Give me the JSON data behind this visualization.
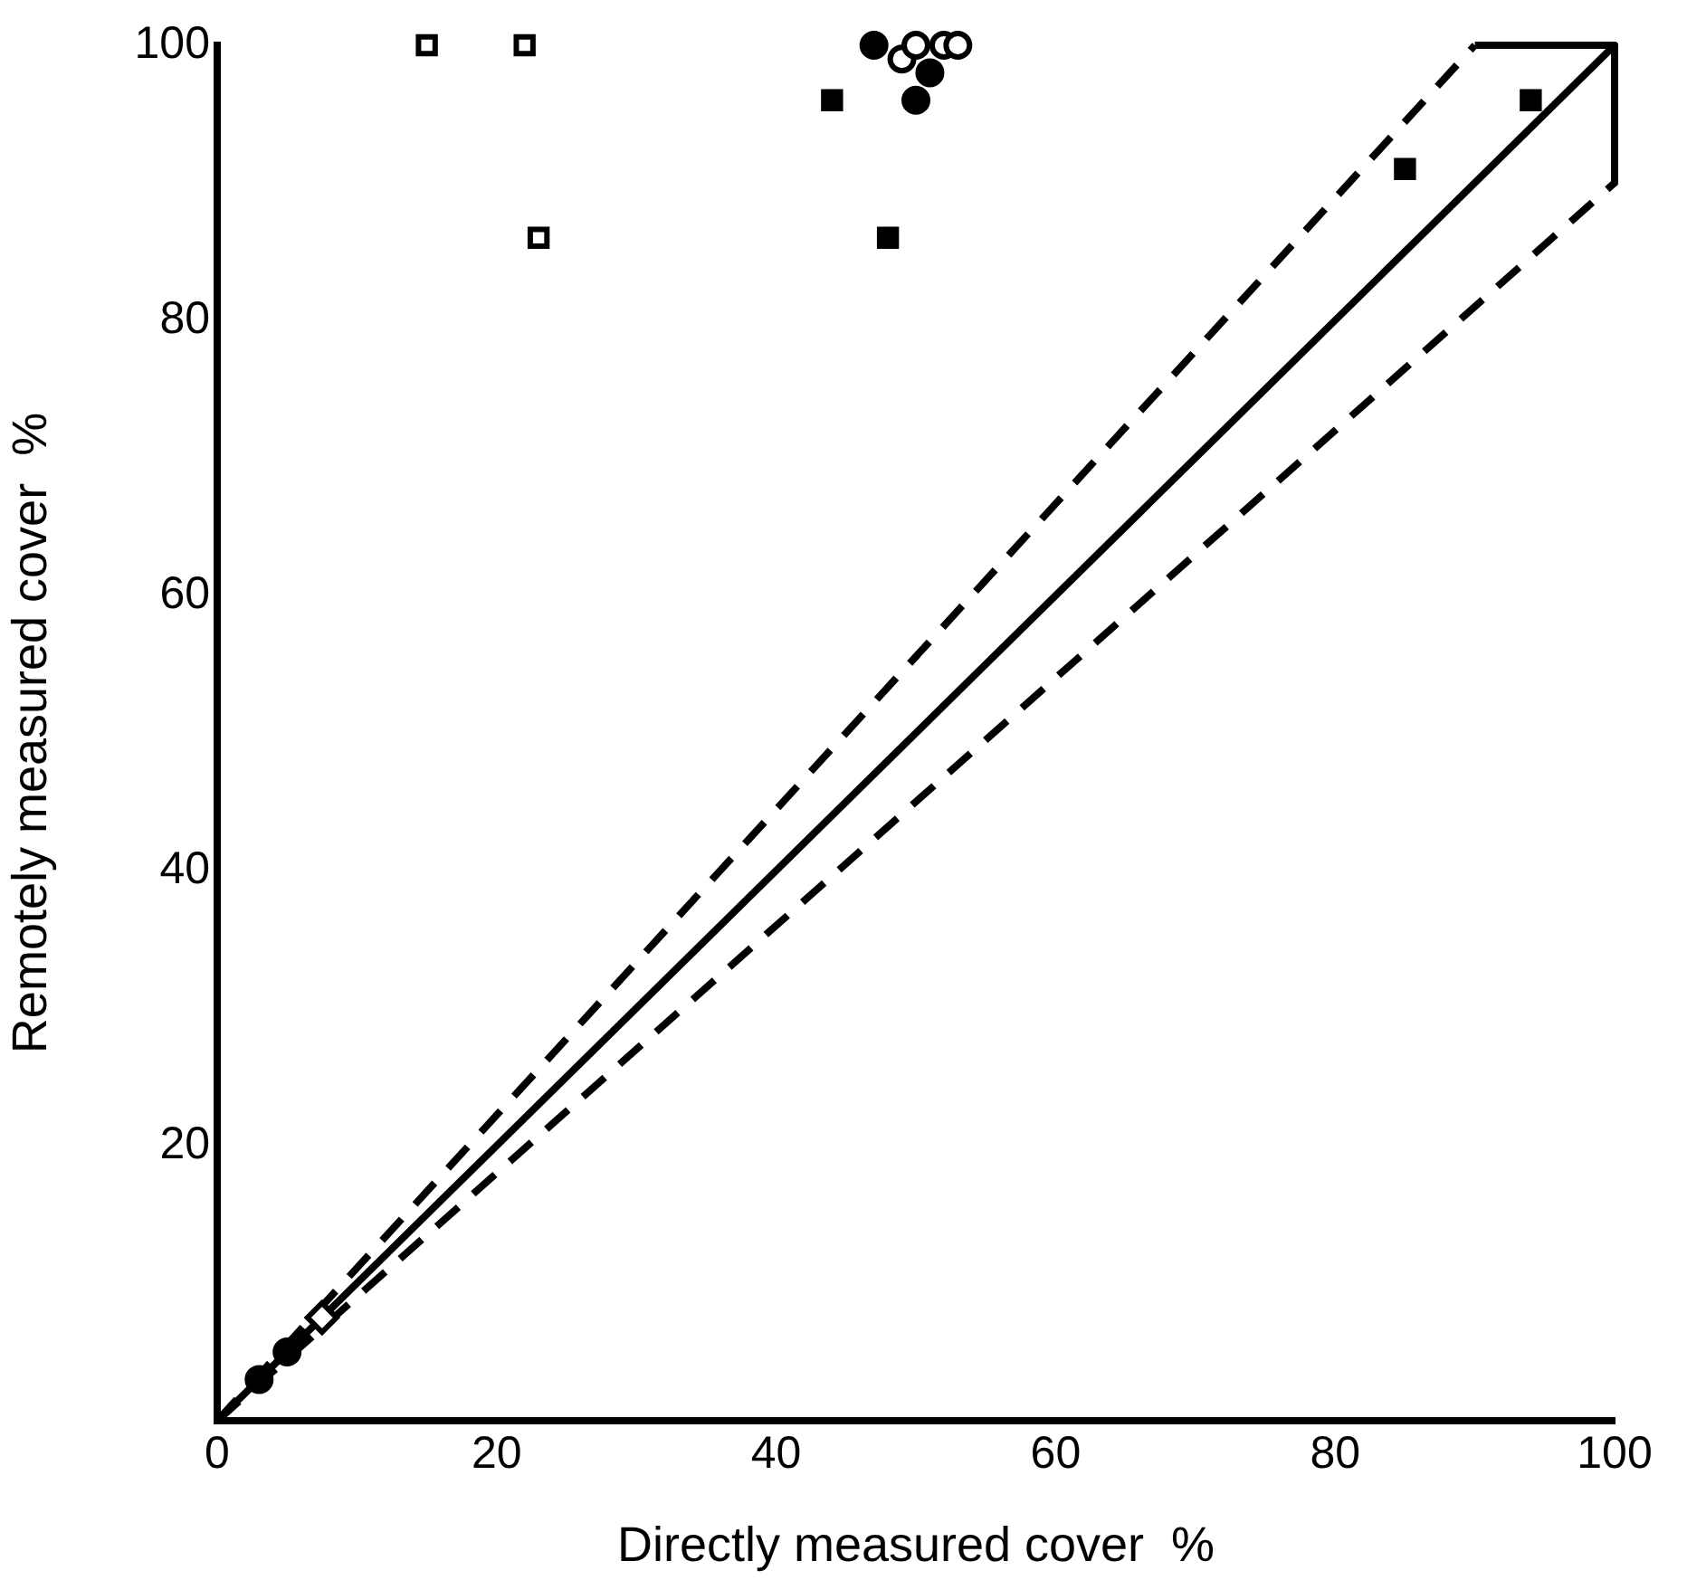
{
  "chart_data": {
    "type": "scatter",
    "xlabel": "Directly measured cover  %",
    "ylabel": "Remotely measured cover  %",
    "xlim": [
      0,
      100
    ],
    "ylim": [
      0,
      100
    ],
    "xticks": [
      0,
      20,
      40,
      60,
      80,
      100
    ],
    "yticks": [
      20,
      40,
      60,
      80,
      100
    ],
    "grid": false,
    "legend": false,
    "series": [
      {
        "type": "line",
        "color": "#000000",
        "x": [
          0,
          100
        ],
        "values": [
          0,
          100
        ],
        "line_style": "solid",
        "marker": "none"
      },
      {
        "type": "line",
        "color": "#000000",
        "x": [
          0,
          90
        ],
        "values": [
          0,
          100
        ],
        "line_style": "dashed",
        "marker": "none"
      },
      {
        "type": "line",
        "color": "#000000",
        "x": [
          0,
          100
        ],
        "values": [
          0,
          90
        ],
        "line_style": "dashed",
        "marker": "none"
      },
      {
        "type": "line",
        "color": "#000000",
        "x": [
          90,
          100,
          100
        ],
        "values": [
          100,
          100,
          90
        ],
        "line_style": "solid",
        "marker": "none"
      },
      {
        "color": "#ffffff",
        "marker": "square",
        "x": [
          15,
          22,
          23
        ],
        "values": [
          100,
          100,
          86
        ]
      },
      {
        "color": "#000000",
        "marker": "square",
        "x": [
          44,
          48,
          85,
          94
        ],
        "values": [
          96,
          86,
          91,
          96
        ]
      },
      {
        "color": "#000000",
        "marker": "circle",
        "x": [
          3,
          5,
          47,
          50,
          51
        ],
        "values": [
          3,
          5,
          100,
          96,
          98
        ]
      },
      {
        "color": "#ffffff",
        "marker": "circle",
        "x": [
          49,
          50,
          52,
          53
        ],
        "values": [
          99,
          100,
          100,
          100
        ]
      },
      {
        "color": "#ffffff",
        "marker": "diamond",
        "x": [
          7.5
        ],
        "values": [
          7.5
        ]
      }
    ]
  }
}
